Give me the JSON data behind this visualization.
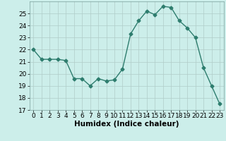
{
  "x": [
    0,
    1,
    2,
    3,
    4,
    5,
    6,
    7,
    8,
    9,
    10,
    11,
    12,
    13,
    14,
    15,
    16,
    17,
    18,
    19,
    20,
    21,
    22,
    23
  ],
  "y": [
    22,
    21.2,
    21.2,
    21.2,
    21.1,
    19.6,
    19.6,
    19.0,
    19.6,
    19.4,
    19.5,
    20.4,
    23.3,
    24.4,
    25.2,
    24.9,
    25.6,
    25.5,
    24.4,
    23.8,
    23.0,
    20.5,
    19.0,
    17.5
  ],
  "xlabel": "Humidex (Indice chaleur)",
  "ylim": [
    17,
    26
  ],
  "xlim": [
    -0.5,
    23.5
  ],
  "yticks": [
    17,
    18,
    19,
    20,
    21,
    22,
    23,
    24,
    25
  ],
  "xticks": [
    0,
    1,
    2,
    3,
    4,
    5,
    6,
    7,
    8,
    9,
    10,
    11,
    12,
    13,
    14,
    15,
    16,
    17,
    18,
    19,
    20,
    21,
    22,
    23
  ],
  "line_color": "#2e7d6e",
  "marker": "D",
  "marker_size": 2.5,
  "bg_color": "#cceeea",
  "grid_color": "#b0ccc8",
  "label_fontsize": 7.5,
  "tick_fontsize": 6.5
}
